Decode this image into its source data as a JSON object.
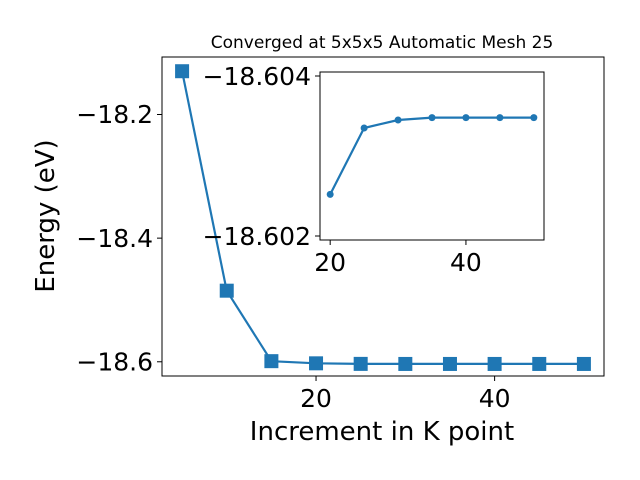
{
  "chart_data": [
    {
      "type": "line",
      "title": "Converged at 5x5x5 Automatic Mesh 25",
      "xlabel": "Increment in K point",
      "ylabel": "Energy (eV)",
      "x": [
        5,
        10,
        15,
        20,
        25,
        30,
        35,
        40,
        45,
        50
      ],
      "series": [
        {
          "values": [
            -18.13,
            -18.485,
            -18.599,
            -18.6025,
            -18.6034,
            -18.6035,
            -18.6035,
            -18.6035,
            -18.6035,
            -18.6035
          ]
        }
      ],
      "xlim": [
        2.75,
        52.25
      ],
      "ylim": [
        -18.623,
        -18.107
      ],
      "xticks": [
        20,
        40
      ],
      "yticks": [
        -18.2,
        -18.4,
        -18.6
      ],
      "xtick_labels": [
        "20",
        "40"
      ],
      "ytick_labels": [
        "−18.2",
        "−18.4",
        "−18.6"
      ],
      "marker": "square",
      "color": "#1f77b4",
      "grid": false
    },
    {
      "type": "line",
      "title": "",
      "xlabel": "",
      "ylabel": "",
      "x": [
        20,
        25,
        30,
        35,
        40,
        45,
        50
      ],
      "series": [
        {
          "values": [
            -18.60252,
            -18.60335,
            -18.60345,
            -18.60348,
            -18.60348,
            -18.60348,
            -18.60348
          ]
        }
      ],
      "xlim": [
        18.5,
        51.5
      ],
      "ylim": [
        -18.60195,
        -18.60405
      ],
      "xticks": [
        20,
        40
      ],
      "yticks": [
        -18.604,
        -18.602
      ],
      "xtick_labels": [
        "20",
        "40"
      ],
      "ytick_labels": [
        "−18.604",
        "−18.602"
      ],
      "marker": "circle",
      "color": "#1f77b4",
      "grid": false
    }
  ]
}
